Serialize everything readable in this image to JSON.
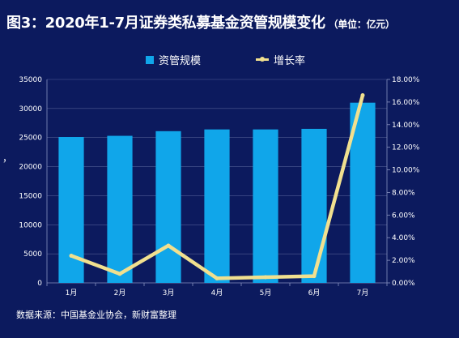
{
  "title": {
    "main": "图3：2020年1-7月证券类私募基金资管规模变化",
    "unit": "（单位：亿元）"
  },
  "side_mark": "，",
  "source": "数据来源：中国基金业协会，新财富整理",
  "colors": {
    "background": "#0c1a5e",
    "bar": "#10a6ea",
    "line": "#f1e08f",
    "axis": "#8892c0"
  },
  "chart_data": {
    "type": "bar",
    "categories": [
      "1月",
      "2月",
      "3月",
      "4月",
      "5月",
      "6月",
      "7月"
    ],
    "series": [
      {
        "name": "资管规模",
        "type": "bar",
        "axis": "left",
        "values": [
          25100,
          25300,
          26100,
          26400,
          26400,
          26500,
          31000
        ]
      },
      {
        "name": "增长率",
        "type": "line",
        "axis": "right",
        "values": [
          2.4,
          0.8,
          3.3,
          0.4,
          0.5,
          0.6,
          16.6
        ]
      }
    ],
    "y_left": {
      "min": 0,
      "max": 35000,
      "ticks": [
        "0",
        "5000",
        "10000",
        "15000",
        "20000",
        "25000",
        "30000",
        "35000"
      ]
    },
    "y_right": {
      "min": 0,
      "max": 18,
      "ticks": [
        "0.00%",
        "2.00%",
        "4.00%",
        "6.00%",
        "8.00%",
        "10.00%",
        "12.00%",
        "14.00%",
        "16.00%",
        "18.00%"
      ]
    },
    "grid": true,
    "legend_position": "top-center"
  }
}
